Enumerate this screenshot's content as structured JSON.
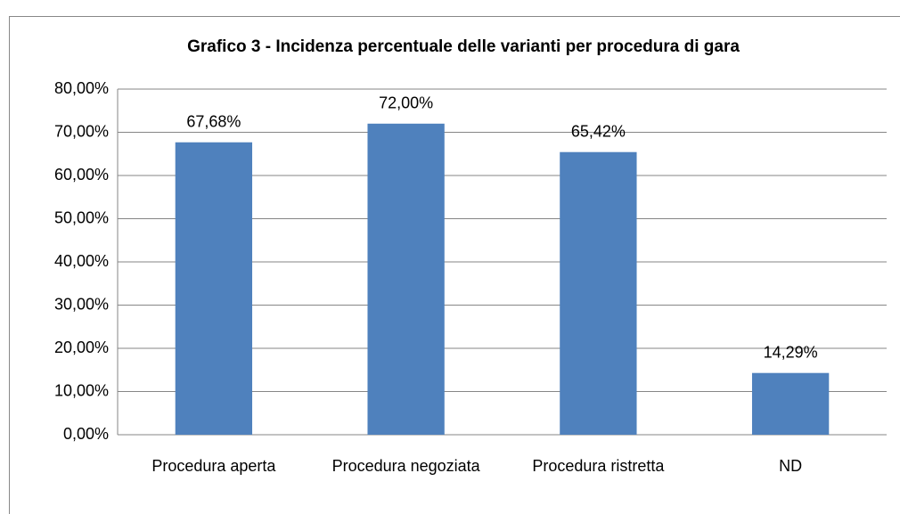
{
  "chart_data": {
    "type": "bar",
    "title": "Grafico 3 - Incidenza percentuale delle varianti per procedura di gara",
    "categories": [
      "Procedura aperta",
      "Procedura negoziata",
      "Procedura ristretta",
      "ND"
    ],
    "values": [
      67.68,
      72.0,
      65.42,
      14.29
    ],
    "value_labels": [
      "67,68%",
      "72,00%",
      "65,42%",
      "14,29%"
    ],
    "color": "#4f81bd",
    "ylim": [
      0,
      80
    ],
    "yticks": [
      {
        "value": 0,
        "label": "0,00%"
      },
      {
        "value": 10,
        "label": "10,00%"
      },
      {
        "value": 20,
        "label": "20,00%"
      },
      {
        "value": 30,
        "label": "30,00%"
      },
      {
        "value": 40,
        "label": "40,00%"
      },
      {
        "value": 50,
        "label": "50,00%"
      },
      {
        "value": 60,
        "label": "60,00%"
      },
      {
        "value": 70,
        "label": "70,00%"
      },
      {
        "value": 80,
        "label": "80,00%"
      }
    ],
    "grid": true
  }
}
